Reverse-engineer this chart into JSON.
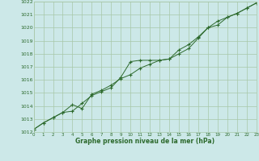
{
  "line1": {
    "x": [
      0,
      1,
      2,
      3,
      4,
      5,
      6,
      7,
      8,
      9,
      10,
      11,
      12,
      13,
      14,
      15,
      16,
      17,
      18,
      19,
      20,
      21,
      22,
      23
    ],
    "y": [
      1012.2,
      1012.7,
      1013.1,
      1013.5,
      1013.6,
      1014.2,
      1014.8,
      1015.1,
      1015.4,
      1016.2,
      1017.4,
      1017.5,
      1017.5,
      1017.5,
      1017.6,
      1018.3,
      1018.7,
      1019.3,
      1020.0,
      1020.5,
      1020.8,
      1021.1,
      1021.5,
      1021.9
    ]
  },
  "line2": {
    "x": [
      0,
      1,
      2,
      3,
      4,
      5,
      6,
      7,
      8,
      9,
      10,
      11,
      12,
      13,
      14,
      15,
      16,
      17,
      18,
      19,
      20,
      21,
      22,
      23
    ],
    "y": [
      1012.2,
      1012.7,
      1013.1,
      1013.5,
      1014.1,
      1013.8,
      1014.9,
      1015.2,
      1015.6,
      1016.1,
      1016.4,
      1016.9,
      1017.2,
      1017.5,
      1017.6,
      1018.0,
      1018.4,
      1019.2,
      1020.0,
      1020.2,
      1020.8,
      1021.1,
      1021.5,
      1021.9
    ]
  },
  "background_color": "#cce8e8",
  "line_color": "#2d6a2d",
  "grid_color": "#a8c8a8",
  "text_color": "#2d6a2d",
  "xlabel": "Graphe pression niveau de la mer (hPa)",
  "ylim": [
    1012,
    1022
  ],
  "xlim": [
    0,
    23
  ],
  "yticks": [
    1012,
    1013,
    1014,
    1015,
    1016,
    1017,
    1018,
    1019,
    1020,
    1021,
    1022
  ],
  "xticks": [
    0,
    1,
    2,
    3,
    4,
    5,
    6,
    7,
    8,
    9,
    10,
    11,
    12,
    13,
    14,
    15,
    16,
    17,
    18,
    19,
    20,
    21,
    22,
    23
  ],
  "marker": "+"
}
